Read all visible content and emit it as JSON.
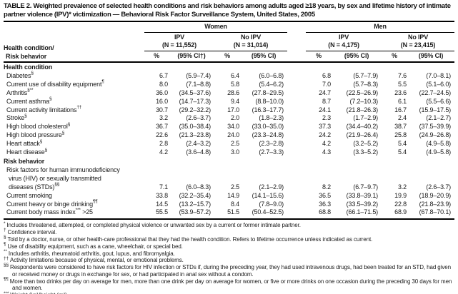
{
  "title": "TABLE 2. Weighted prevalence of selected health conditions and risk behaviors among adults aged ≥18 years, by sex and lifetime history of intimate partner violence (IPV)* victimization — Behavioral Risk Factor Surveillance System, United States, 2005",
  "header": {
    "row_label_line1": "Health condition/",
    "row_label_line2": "Risk behavior",
    "groups": [
      {
        "label": "Women",
        "cols": [
          {
            "label": "IPV",
            "n": "(N = 11,552)",
            "pct": "%",
            "ci": "(95% CI†)"
          },
          {
            "label": "No IPV",
            "n": "(N = 31,014)",
            "pct": "%",
            "ci": "(95% CI)"
          }
        ]
      },
      {
        "label": "Men",
        "cols": [
          {
            "label": "IPV",
            "n": "(N = 4,175)",
            "pct": "%",
            "ci": "(95% CI)"
          },
          {
            "label": "No IPV",
            "n": "(N = 23,415)",
            "pct": "%",
            "ci": "(95% CI)"
          }
        ]
      }
    ]
  },
  "sections": [
    {
      "label": "Health condition",
      "rows": [
        {
          "label_lines": [
            "Diabetes"
          ],
          "sup": "§",
          "values": [
            "6.7",
            "(5.9–7.4)",
            "6.4",
            "(6.0–6.8)",
            "6.8",
            "(5.7–7.9)",
            "7.6",
            "(7.0–8.1)"
          ]
        },
        {
          "label_lines": [
            "Current use of disability equipment"
          ],
          "sup": "¶",
          "values": [
            "8.0",
            "(7.1–8.8)",
            "5.8",
            "(5.4–6.2)",
            "7.0",
            "(5.7–8.3)",
            "5.5",
            "(5.1–6.0)"
          ]
        },
        {
          "label_lines": [
            "Arthritis"
          ],
          "sup": "§**",
          "values": [
            "36.0",
            "(34.5–37.6)",
            "28.6",
            "(27.8–29.5)",
            "24.7",
            "(22.5–26.9)",
            "23.6",
            "(22.7–24.5)"
          ]
        },
        {
          "label_lines": [
            "Current asthma"
          ],
          "sup": "§",
          "values": [
            "16.0",
            "(14.7–17.3)",
            "9.4",
            "(8.8–10.0)",
            "8.7",
            "(7.2–10.3)",
            "6.1",
            "(5.5–6.6)"
          ]
        },
        {
          "label_lines": [
            "Current activity limitations"
          ],
          "sup": "††",
          "values": [
            "30.7",
            "(29.2–32.2)",
            "17.0",
            "(16.3–17.7)",
            "24.1",
            "(21.8–26.3)",
            "16.7",
            "(15.9–17.5)"
          ]
        },
        {
          "label_lines": [
            "Stroke"
          ],
          "sup": "§",
          "values": [
            "3.2",
            "(2.6–3.7)",
            "2.0",
            "(1.8–2.3)",
            "2.3",
            "(1.7–2.9)",
            "2.4",
            "(2.1–2.7)"
          ]
        },
        {
          "label_lines": [
            "High blood cholesterol"
          ],
          "sup": "§",
          "values": [
            "36.7",
            "(35.0–38.4)",
            "34.0",
            "(33.0–35.0)",
            "37.3",
            "(34.4–40.2)",
            "38.7",
            "(37.5–39.9)"
          ]
        },
        {
          "label_lines": [
            "High blood pressure"
          ],
          "sup": "§",
          "values": [
            "22.6",
            "(21.3–23.8)",
            "24.0",
            "(23.3–24.8)",
            "24.2",
            "(21.9–26.4)",
            "25.8",
            "(24.9–26.8)"
          ]
        },
        {
          "label_lines": [
            "Heart attack"
          ],
          "sup": "§",
          "values": [
            "2.8",
            "(2.4–3.2)",
            "2.5",
            "(2.3–2.8)",
            "4.2",
            "(3.2–5.2)",
            "5.4",
            "(4.9–5.8)"
          ]
        },
        {
          "label_lines": [
            "Heart disease"
          ],
          "sup": "§",
          "values": [
            "4.2",
            "(3.6–4.8)",
            "3.0",
            "(2.7–3.3)",
            "4.3",
            "(3.3–5.2)",
            "5.4",
            "(4.9–5.8)"
          ]
        }
      ]
    },
    {
      "label": "Risk behavior",
      "rows": [
        {
          "label_lines": [
            "Risk factors for human immunodeficiency",
            "virus (HIV) or sexually transmitted",
            "diseases (STDs)"
          ],
          "sup": "§§",
          "values": [
            "7.1",
            "(6.0–8.3)",
            "2.5",
            "(2.1–2.9)",
            "8.2",
            "(6.7–9.7)",
            "3.2",
            "(2.6–3.7)"
          ]
        },
        {
          "label_lines": [
            "Current smoking"
          ],
          "sup": "",
          "values": [
            "33.8",
            "(32.2–35.4)",
            "14.9",
            "(14.1–15.6)",
            "36.5",
            "(33.8–39.1)",
            "19.9",
            "(18.9–20.9)"
          ]
        },
        {
          "label_lines": [
            "Current heavy or binge drinking"
          ],
          "sup": "¶¶",
          "values": [
            "14.5",
            "(13.2–15.7)",
            "8.4",
            "(7.8–9.0)",
            "36.3",
            "(33.5–39.2)",
            "22.8",
            "(21.8–23.9)"
          ]
        },
        {
          "label_lines": [
            "Current body mass index"
          ],
          "sup": "***",
          "suffix": " >25",
          "values": [
            "55.5",
            "(53.9–57.2)",
            "51.5",
            "(50.4–52.5)",
            "68.8",
            "(66.1–71.5)",
            "68.9",
            "(67.8–70.1)"
          ]
        }
      ]
    }
  ],
  "footnotes": [
    {
      "marker": "*",
      "text": "Includes threatened, attempted, or completed physical violence or unwanted sex by a current or former intimate partner."
    },
    {
      "marker": "†",
      "text": "Confidence interval."
    },
    {
      "marker": "§",
      "text": "Told by a doctor, nurse, or other health-care professional that they had the health condition. Refers to lifetime occurrence unless indicated as current."
    },
    {
      "marker": "¶",
      "text": "Use of disability equipment, such as a cane, wheelchair, or special bed."
    },
    {
      "marker": "**",
      "text": "Includes arthritis, rheumatoid arthritis, gout, lupus, and fibromyalgia."
    },
    {
      "marker": "††",
      "text": "Activity limitations because of physical, mental, or emotional problems."
    },
    {
      "marker": "§§",
      "text": "Respondents were considered to have risk factors for HIV infection or STDs if, during the preceding year, they had used intravenous drugs, had been treated for an STD, had given or received money or drugs in exchange for sex, or had participated in anal sex without a condom."
    },
    {
      "marker": "¶¶",
      "text": "More than two drinks per day on average for men, more than one drink per day on average for women, or five or more drinks on one occasion during the preceding 30 days for men and women."
    },
    {
      "marker": "***",
      "text": "Weight (kg)/height (m²)."
    }
  ]
}
